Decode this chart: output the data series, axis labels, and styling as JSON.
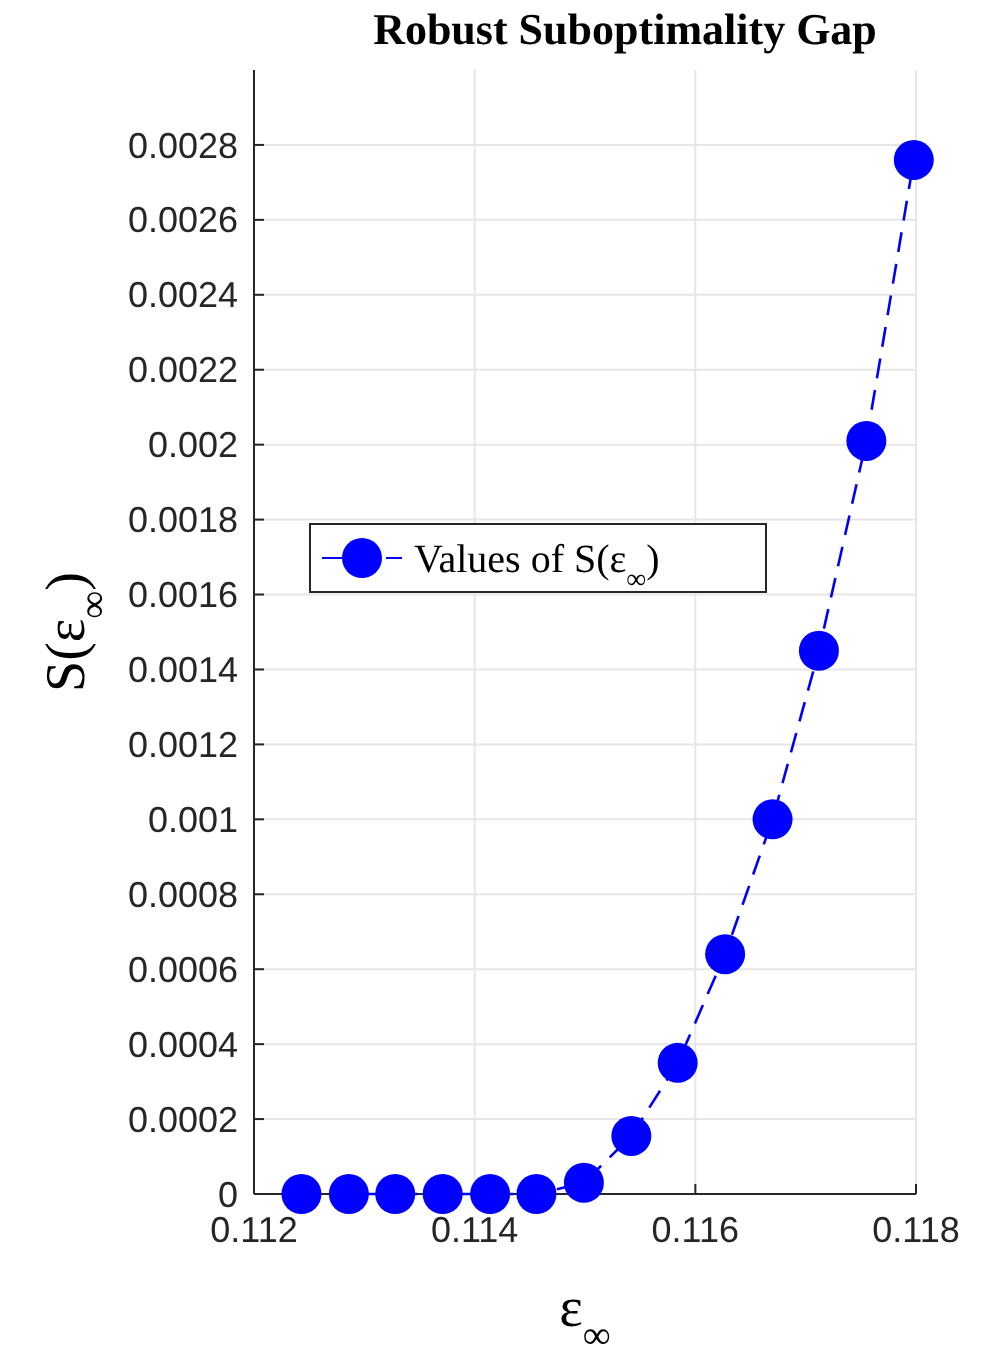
{
  "chart_data": {
    "type": "line",
    "title": "Robust Suboptimality Gap",
    "xlabel": "ε$_{∞}$",
    "ylabel": "S(ε$_{∞}$)",
    "x": [
      0.11243,
      0.11286,
      0.11328,
      0.11371,
      0.11414,
      0.11456,
      0.11499,
      0.11542,
      0.11584,
      0.11627,
      0.1167,
      0.11712,
      0.11755,
      0.11798
    ],
    "series": [
      {
        "name": "Values of S(ε$_{∞}$)",
        "color": "#0000ff",
        "values": [
          0,
          0,
          0,
          0,
          0,
          0,
          3e-05,
          0.000155,
          0.00035,
          0.00064,
          0.001,
          0.00145,
          0.00201,
          0.00276
        ]
      }
    ],
    "xlim": [
      0.112,
      0.118
    ],
    "xticks": [
      0.112,
      0.114,
      0.116,
      0.118
    ],
    "ylim": [
      0,
      0.003
    ],
    "yticks": [
      0,
      0.0002,
      0.0004,
      0.0006,
      0.0008,
      0.001,
      0.0012,
      0.0014,
      0.0016,
      0.0018,
      0.002,
      0.0022,
      0.0024,
      0.0026,
      0.0028
    ],
    "grid": true,
    "legend": "left",
    "marker": "circle",
    "line_style": "dashed"
  }
}
